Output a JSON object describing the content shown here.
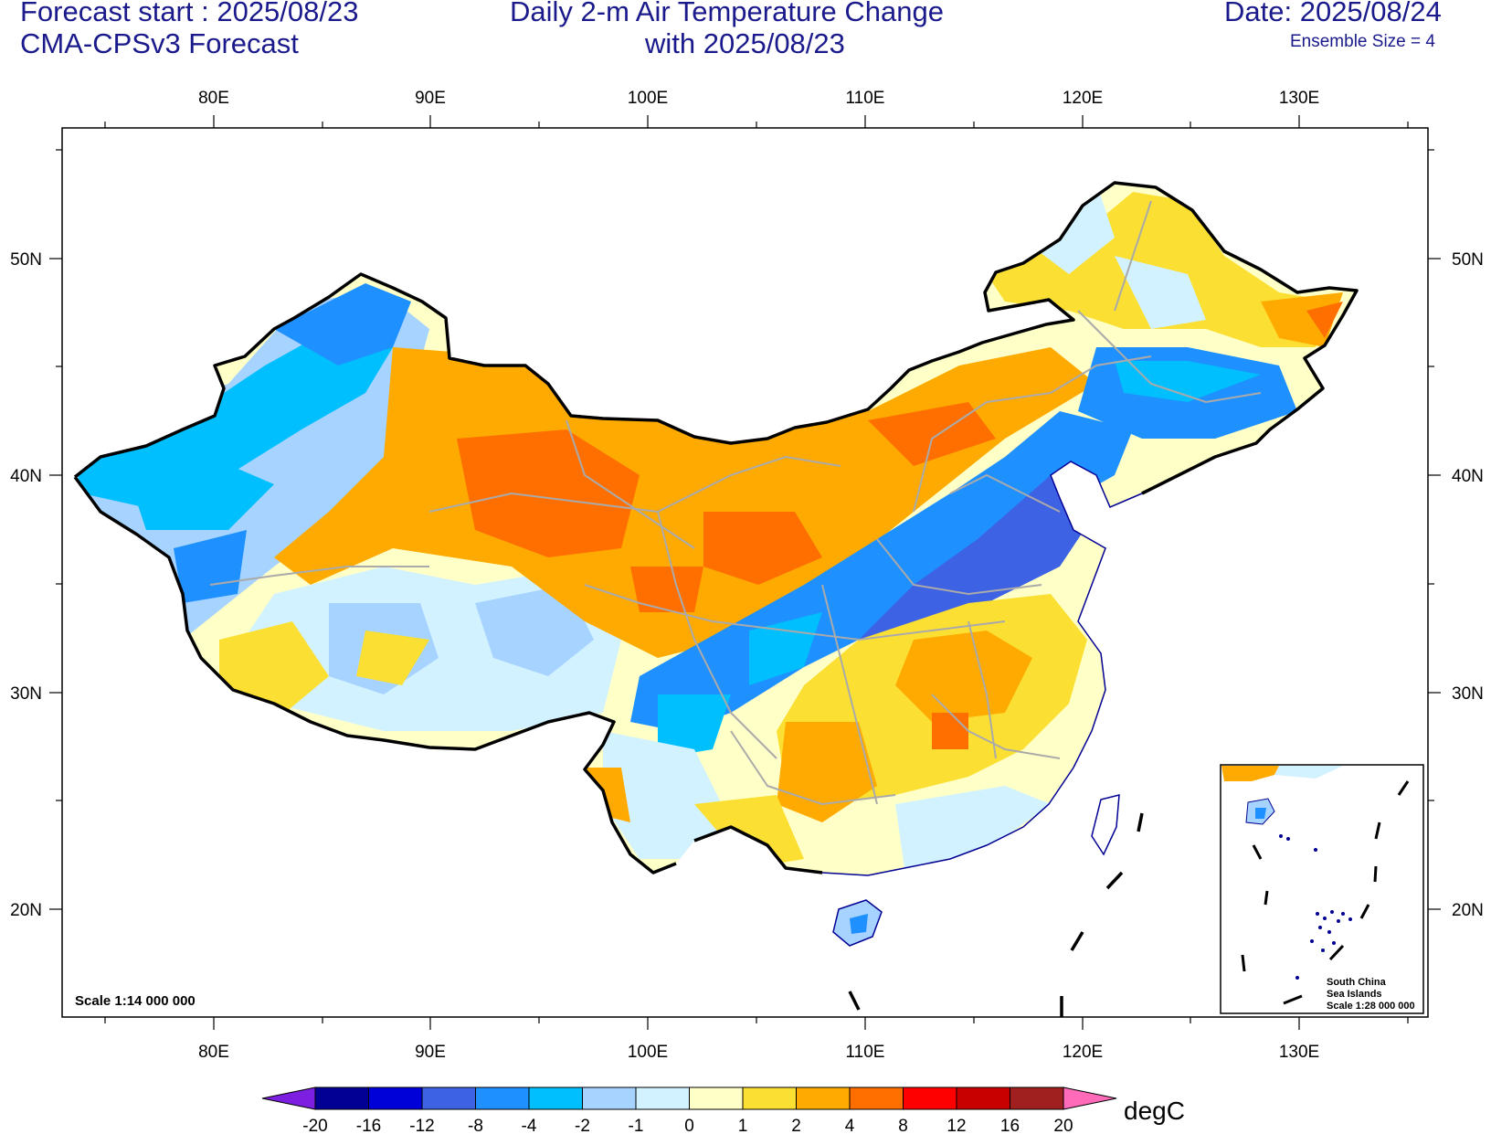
{
  "header": {
    "forecast_start": "Forecast start : 2025/08/23",
    "model": "CMA-CPSv3 Forecast",
    "title_line1": "Daily 2-m Air Temperature Change",
    "title_line2": "with 2025/08/23",
    "date": "Date: 2025/08/24",
    "ensemble": "Ensemble Size = 4"
  },
  "axes": {
    "lon_labels": [
      "80E",
      "90E",
      "100E",
      "110E",
      "120E",
      "130E"
    ],
    "lat_labels": [
      "50N",
      "40N",
      "30N",
      "20N"
    ]
  },
  "scale_note": "Scale 1:14 000 000",
  "inset": {
    "line1": "South China",
    "line2": "Sea Islands",
    "line3": "Scale 1:28 000 000"
  },
  "colorbar": {
    "unit": "degC",
    "labels": [
      "-20",
      "-16",
      "-12",
      "-8",
      "-4",
      "-2",
      "-1",
      "0",
      "1",
      "2",
      "4",
      "8",
      "12",
      "16",
      "20"
    ],
    "colors": [
      "#7d1fe0",
      "#020094",
      "#0000d8",
      "#3d62e4",
      "#1e90ff",
      "#00bfff",
      "#a6d3ff",
      "#d2f2ff",
      "#ffffc8",
      "#fbe033",
      "#ffaa00",
      "#ff6f00",
      "#ff0000",
      "#c80000",
      "#a02020",
      "#ff6ab9"
    ]
  },
  "colors": {
    "text": "#1a1a8c",
    "border": "#000000",
    "province": "#aaaaaa"
  }
}
